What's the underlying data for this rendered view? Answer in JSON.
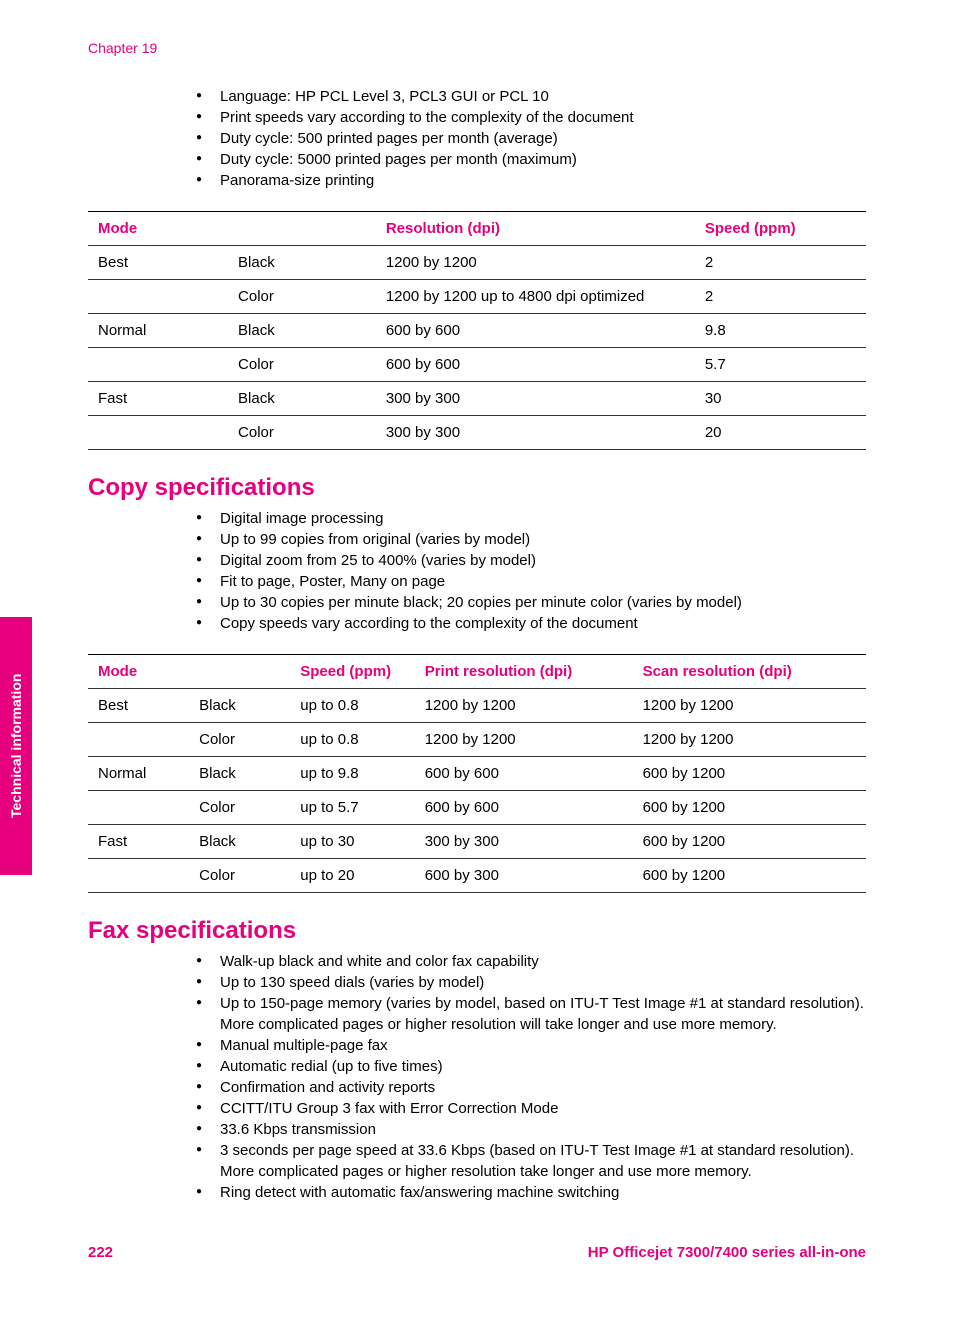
{
  "chapter_label": "Chapter 19",
  "side_tab": "Technical information",
  "top_bullets": [
    "Language: HP PCL Level 3, PCL3 GUI or PCL 10",
    "Print speeds vary according to the complexity of the document",
    "Duty cycle: 500 printed pages per month (average)",
    "Duty cycle: 5000 printed pages per month (maximum)",
    "Panorama-size printing"
  ],
  "table1": {
    "headers": [
      "Mode",
      "",
      "Resolution (dpi)",
      "Speed (ppm)"
    ],
    "rows": [
      [
        "Best",
        "Black",
        "1200 by 1200",
        "2"
      ],
      [
        "",
        "Color",
        "1200 by 1200 up to 4800 dpi optimized",
        "2"
      ],
      [
        "Normal",
        "Black",
        "600 by 600",
        "9.8"
      ],
      [
        "",
        "Color",
        "600 by 600",
        "5.7"
      ],
      [
        "Fast",
        "Black",
        "300 by 300",
        "30"
      ],
      [
        "",
        "Color",
        "300 by 300",
        "20"
      ]
    ]
  },
  "copy_heading": "Copy specifications",
  "copy_bullets": [
    "Digital image processing",
    "Up to 99 copies from original (varies by model)",
    "Digital zoom from 25 to 400% (varies by model)",
    "Fit to page, Poster, Many on page",
    "Up to 30 copies per minute black; 20 copies per minute color (varies by model)",
    "Copy speeds vary according to the complexity of the document"
  ],
  "table2": {
    "headers": [
      "Mode",
      "",
      "Speed (ppm)",
      "Print resolution (dpi)",
      "Scan resolution (dpi)"
    ],
    "rows": [
      [
        "Best",
        "Black",
        "up to 0.8",
        "1200 by 1200",
        "1200 by 1200"
      ],
      [
        "",
        "Color",
        "up to 0.8",
        "1200 by 1200",
        "1200 by 1200"
      ],
      [
        "Normal",
        "Black",
        "up to 9.8",
        "600 by 600",
        "600 by 1200"
      ],
      [
        "",
        "Color",
        "up to 5.7",
        "600 by 600",
        "600 by 1200"
      ],
      [
        "Fast",
        "Black",
        "up to 30",
        "300 by 300",
        "600 by 1200"
      ],
      [
        "",
        "Color",
        "up to 20",
        "600 by 300",
        "600 by 1200"
      ]
    ]
  },
  "fax_heading": "Fax specifications",
  "fax_bullets": [
    "Walk-up black and white and color fax capability",
    "Up to 130 speed dials (varies by model)",
    "Up to 150-page memory (varies by model, based on ITU-T Test Image #1 at standard resolution). More complicated pages or higher resolution will take longer and use more memory.",
    "Manual multiple-page fax",
    "Automatic redial (up to five times)",
    "Confirmation and activity reports",
    "CCITT/ITU Group 3 fax with Error Correction Mode",
    "33.6 Kbps transmission",
    "3 seconds per page speed at 33.6 Kbps (based on ITU-T Test Image #1 at standard resolution). More complicated pages or higher resolution take longer and use more memory.",
    "Ring detect with automatic fax/answering machine switching"
  ],
  "footer": {
    "page_number": "222",
    "product": "HP Officejet 7300/7400 series all-in-one"
  },
  "colors": {
    "accent": "#e6007e",
    "text": "#000000",
    "background": "#ffffff"
  }
}
